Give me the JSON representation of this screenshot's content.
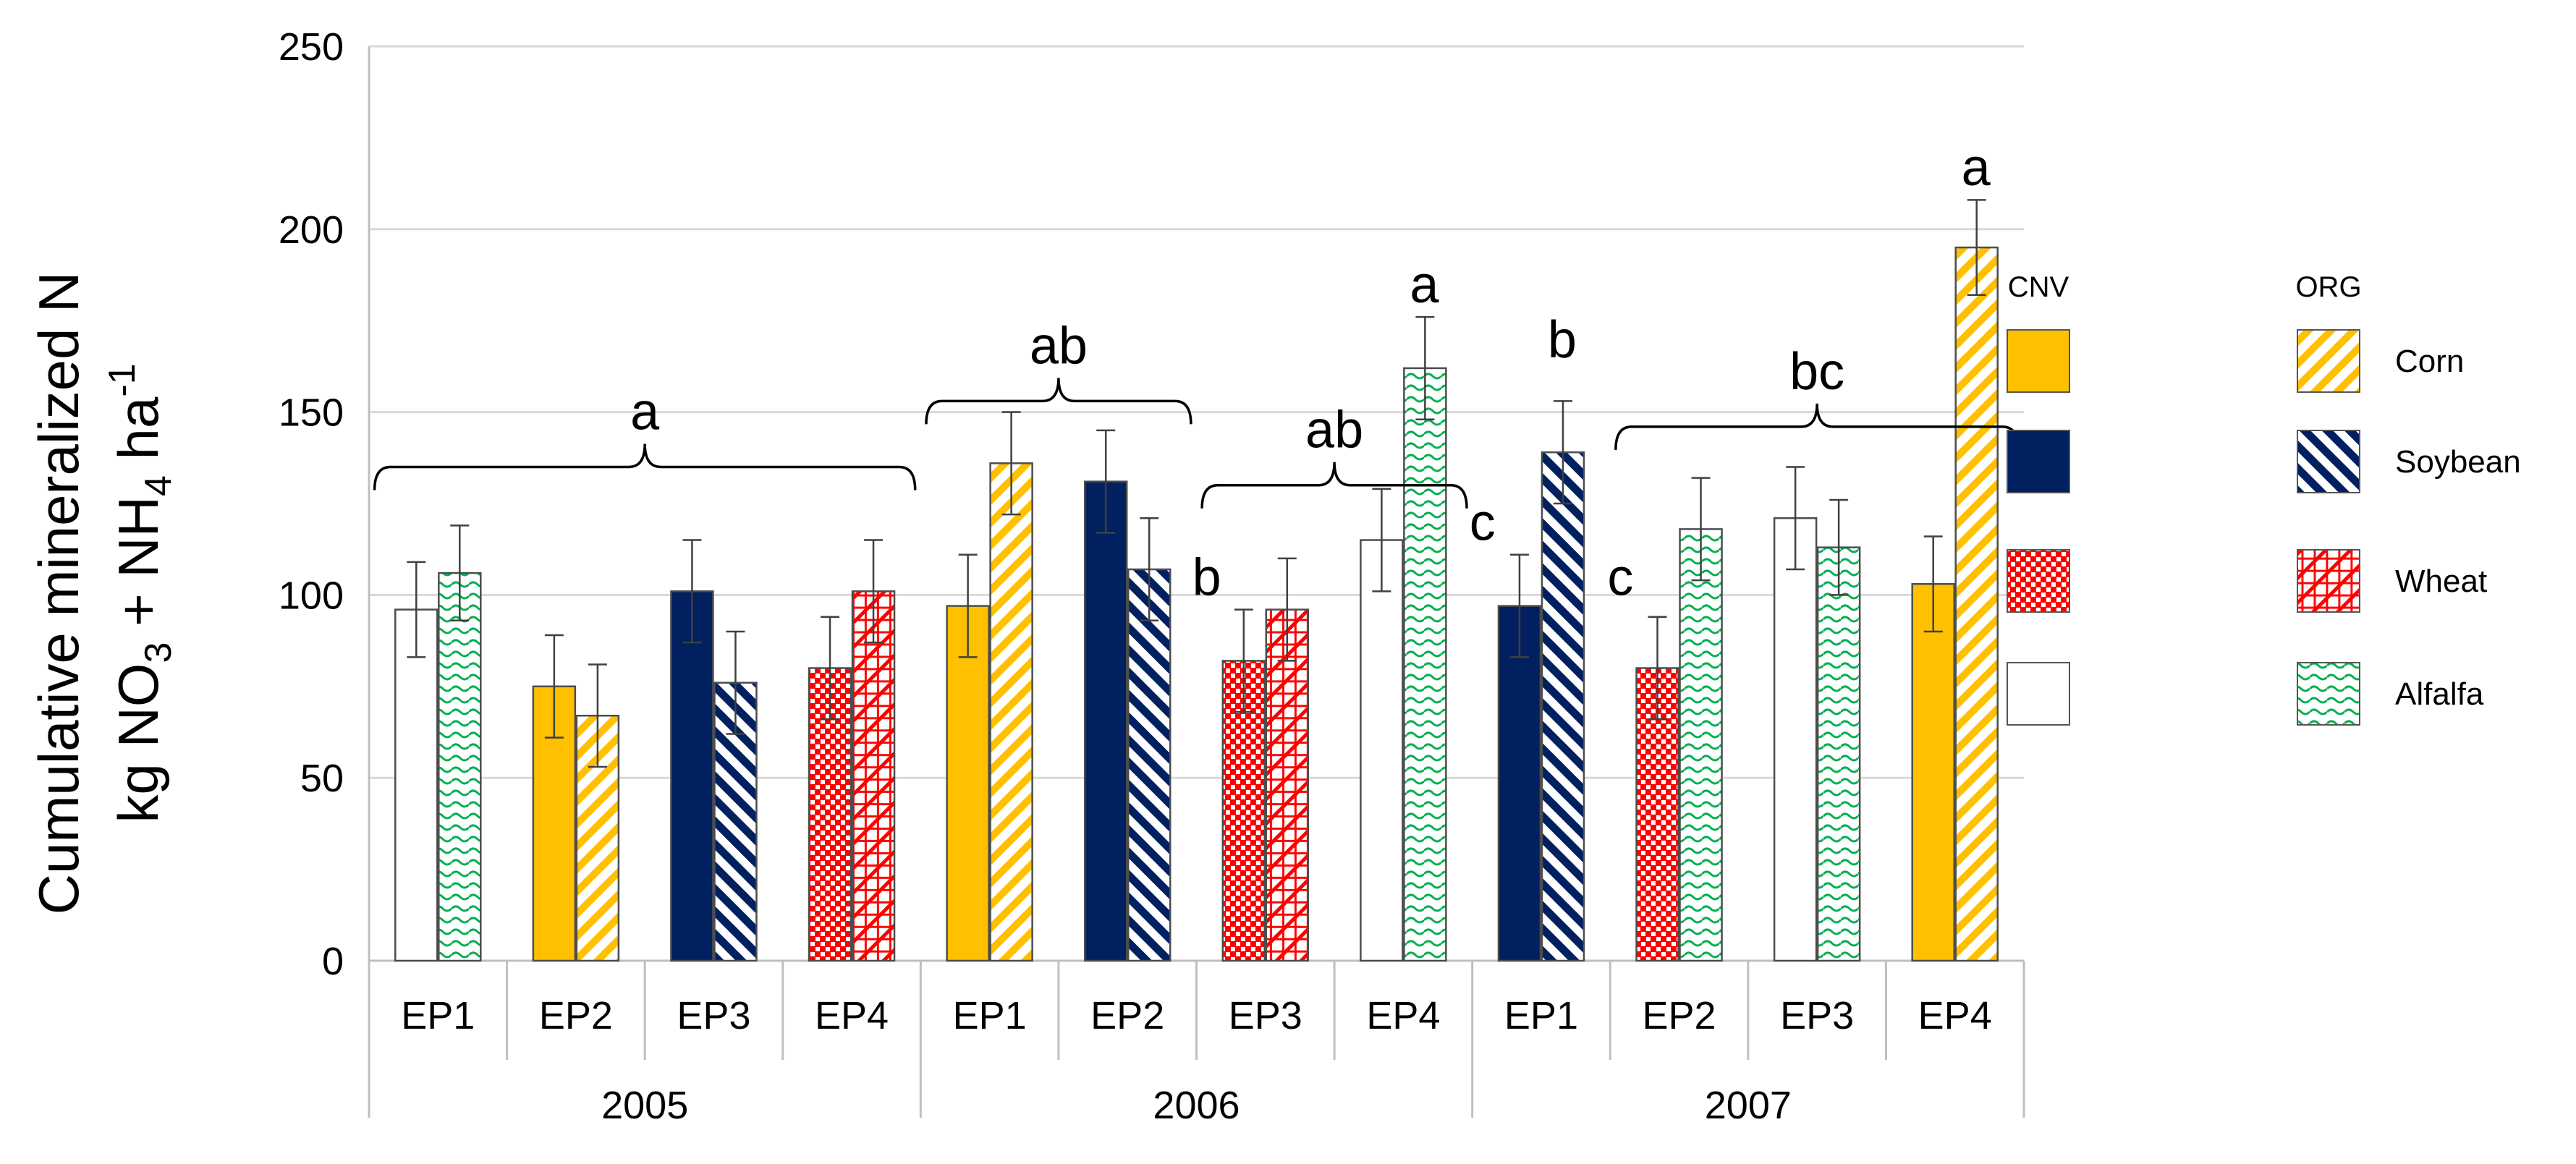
{
  "chart_data": {
    "type": "bar",
    "title": "",
    "ylabel_line1": "Cumulative mineralized N",
    "ylabel_line2": {
      "t1": "kg NO",
      "s1": "3",
      "t2": " + NH",
      "s2": "4",
      "t3": " ha",
      "sup": "-1"
    },
    "ylim": [
      0,
      250
    ],
    "yticks": [
      "0",
      "50",
      "100",
      "150",
      "200",
      "250"
    ],
    "grid": true,
    "legend_position": "right",
    "legend": {
      "header_cnv": "CNV",
      "header_org": "ORG",
      "crops": [
        "Corn",
        "Soybean",
        "Wheat",
        "Alfalfa"
      ]
    },
    "colors": {
      "Corn": "#ffc000",
      "Soybean": "#002060",
      "Wheat": "#ff0000",
      "Alfalfa": "#00b050"
    },
    "years": [
      "2005",
      "2006",
      "2007"
    ],
    "groups": [
      {
        "year": "2005",
        "label": "EP1",
        "bars": [
          {
            "crop": "Alfalfa",
            "system": "CNV",
            "value": 96,
            "err": 13
          },
          {
            "crop": "Alfalfa",
            "system": "ORG",
            "value": 106,
            "err": 13
          }
        ]
      },
      {
        "year": "2005",
        "label": "EP2",
        "bars": [
          {
            "crop": "Corn",
            "system": "CNV",
            "value": 75,
            "err": 14
          },
          {
            "crop": "Corn",
            "system": "ORG",
            "value": 67,
            "err": 14
          }
        ]
      },
      {
        "year": "2005",
        "label": "EP3",
        "bars": [
          {
            "crop": "Soybean",
            "system": "CNV",
            "value": 101,
            "err": 14
          },
          {
            "crop": "Soybean",
            "system": "ORG",
            "value": 76,
            "err": 14
          }
        ]
      },
      {
        "year": "2005",
        "label": "EP4",
        "bars": [
          {
            "crop": "Wheat",
            "system": "CNV",
            "value": 80,
            "err": 14
          },
          {
            "crop": "Wheat",
            "system": "ORG",
            "value": 101,
            "err": 14
          }
        ]
      },
      {
        "year": "2006",
        "label": "EP1",
        "bars": [
          {
            "crop": "Corn",
            "system": "CNV",
            "value": 97,
            "err": 14
          },
          {
            "crop": "Corn",
            "system": "ORG",
            "value": 136,
            "err": 14
          }
        ]
      },
      {
        "year": "2006",
        "label": "EP2",
        "bars": [
          {
            "crop": "Soybean",
            "system": "CNV",
            "value": 131,
            "err": 14
          },
          {
            "crop": "Soybean",
            "system": "ORG",
            "value": 107,
            "err": 14
          }
        ]
      },
      {
        "year": "2006",
        "label": "EP3",
        "bars": [
          {
            "crop": "Wheat",
            "system": "CNV",
            "value": 82,
            "err": 14
          },
          {
            "crop": "Wheat",
            "system": "ORG",
            "value": 96,
            "err": 14
          }
        ]
      },
      {
        "year": "2006",
        "label": "EP4",
        "bars": [
          {
            "crop": "Alfalfa",
            "system": "CNV",
            "value": 115,
            "err": 14
          },
          {
            "crop": "Alfalfa",
            "system": "ORG",
            "value": 162,
            "err": 14
          }
        ]
      },
      {
        "year": "2007",
        "label": "EP1",
        "bars": [
          {
            "crop": "Soybean",
            "system": "CNV",
            "value": 97,
            "err": 14
          },
          {
            "crop": "Soybean",
            "system": "ORG",
            "value": 139,
            "err": 14
          }
        ]
      },
      {
        "year": "2007",
        "label": "EP2",
        "bars": [
          {
            "crop": "Wheat",
            "system": "CNV",
            "value": 80,
            "err": 14
          },
          {
            "crop": "Alfalfa",
            "system": "ORG",
            "value": 118,
            "err": 14
          }
        ]
      },
      {
        "year": "2007",
        "label": "EP3",
        "bars": [
          {
            "crop": "Alfalfa",
            "system": "CNV",
            "value": 121,
            "err": 14
          },
          {
            "crop": "Alfalfa",
            "system": "ORG",
            "value": 113,
            "err": 13
          }
        ]
      },
      {
        "year": "2007",
        "label": "EP4",
        "bars": [
          {
            "crop": "Corn",
            "system": "CNV",
            "value": 103,
            "err": 13
          },
          {
            "crop": "Corn",
            "system": "ORG",
            "value": 195,
            "err": 13
          }
        ]
      }
    ],
    "annotations": [
      {
        "text": "a",
        "kind": "brace",
        "from_group": 0,
        "to_group": 3,
        "level": 135
      },
      {
        "text": "ab",
        "kind": "brace",
        "from_group": 4,
        "to_group": 5,
        "level": 153
      },
      {
        "text": "b",
        "kind": "label",
        "group": 6,
        "level": 100
      },
      {
        "text": "ab",
        "kind": "brace",
        "from_group": 6,
        "to_group": 7,
        "level": 130
      },
      {
        "text": "a",
        "kind": "label",
        "group": 7,
        "level": 180
      },
      {
        "text": "c",
        "kind": "label",
        "group": 8,
        "level": 115
      },
      {
        "text": "b",
        "kind": "label",
        "group": 8,
        "level": 165
      },
      {
        "text": "c",
        "kind": "label",
        "group": 9,
        "level": 100
      },
      {
        "text": "bc",
        "kind": "brace",
        "from_group": 9,
        "to_group": 11,
        "level": 146
      },
      {
        "text": "a",
        "kind": "label",
        "group": 11,
        "level": 212
      }
    ]
  }
}
